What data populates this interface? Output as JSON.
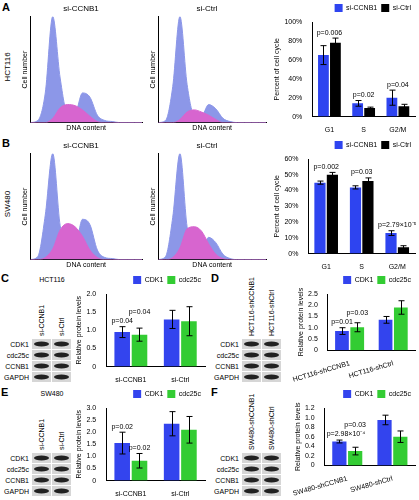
{
  "figure": {
    "panels": [
      "A",
      "B",
      "C",
      "D",
      "E",
      "F"
    ],
    "row_labels": [
      "HCT116",
      "SW480"
    ],
    "blots": [
      {
        "title": "HCT116",
        "lanes": [
          "si-CCNB1",
          "si-Ctrl"
        ],
        "rows": [
          "CDK1",
          "cdc25c",
          "CCNB1",
          "GAPDH"
        ]
      },
      {
        "lanes": [
          "HCT116-shCCNB1",
          "HCT116-shCtrl"
        ],
        "rows": [
          "CDK1",
          "cdc25c",
          "CCNB1",
          "GAPDH"
        ]
      },
      {
        "title": "SW480",
        "lanes": [
          "si-CCNB1",
          "si-Ctrl"
        ],
        "rows": [
          "CDK1",
          "cdc25c",
          "CCNB1",
          "GAPDH"
        ]
      },
      {
        "lanes": [
          "SW480-shCCNB1",
          "SW480-shCtrl"
        ],
        "rows": [
          "CDK1",
          "cdc25c",
          "CCNB1",
          "GAPDH"
        ]
      }
    ]
  },
  "chart_data": [
    {
      "type": "area",
      "title": "si-CCNB1",
      "x_label": "DNA content",
      "y_label": "Cell number",
      "x": [
        0,
        1,
        2,
        3,
        4,
        5,
        6,
        7,
        8,
        9,
        10,
        11,
        12,
        13,
        14,
        15
      ],
      "xlim": [
        0,
        15
      ],
      "ylim": [
        0,
        100
      ],
      "tick_labels": false,
      "grid": false,
      "series": [
        {
          "color": "#8c97e8",
          "values": [
            0,
            2,
            28,
            100,
            42,
            9,
            9,
            28,
            24,
            7,
            2,
            1,
            0,
            0,
            0,
            0
          ]
        },
        {
          "color": "#d765cf",
          "values": [
            0,
            0,
            0,
            4,
            14,
            17,
            16,
            12,
            6,
            1,
            0,
            0,
            0,
            0,
            0,
            0
          ]
        }
      ]
    },
    {
      "type": "area",
      "title": "si-Ctrl",
      "x_label": "DNA content",
      "y_label": "Cell number",
      "x": [
        0,
        1,
        2,
        3,
        4,
        5,
        6,
        7,
        8,
        9,
        10,
        11,
        12,
        13,
        14,
        15
      ],
      "xlim": [
        0,
        15
      ],
      "ylim": [
        0,
        100
      ],
      "tick_labels": false,
      "grid": false,
      "series": [
        {
          "color": "#8c97e8",
          "values": [
            0,
            2,
            34,
            100,
            36,
            7,
            6,
            17,
            13,
            4,
            1,
            0,
            0,
            0,
            0,
            0
          ]
        },
        {
          "color": "#d765cf",
          "values": [
            0,
            0,
            0,
            3,
            10,
            12,
            10,
            7,
            3,
            0,
            0,
            0,
            0,
            0,
            0,
            0
          ]
        }
      ]
    },
    {
      "type": "bar",
      "y_label": "Percent of cell cycle",
      "categories": [
        "G1",
        "S",
        "G2/M"
      ],
      "ylim": [
        0,
        100
      ],
      "yticks": [
        {
          "value": 0,
          "label": "0%"
        },
        {
          "value": 20,
          "label": "20%"
        },
        {
          "value": 40,
          "label": "40%"
        },
        {
          "value": 60,
          "label": "60%"
        },
        {
          "value": 80,
          "label": "80%"
        },
        {
          "value": 100,
          "label": "100%"
        }
      ],
      "grid": false,
      "legend": "top-right",
      "series": [
        {
          "name": "si-CCNB1",
          "color": "#2e44f0",
          "values": [
            65,
            14,
            20
          ],
          "errors": [
            10,
            3,
            8
          ]
        },
        {
          "name": "si-Ctrl",
          "color": "#000000",
          "values": [
            78,
            9,
            11
          ],
          "errors": [
            5,
            1,
            2
          ]
        }
      ],
      "annotations": [
        {
          "text": "p=0.006",
          "category": "G1"
        },
        {
          "text": "p=0.02",
          "category": "S"
        },
        {
          "text": "p=0.04",
          "category": "G2/M"
        }
      ]
    },
    {
      "type": "area",
      "title": "si-CCNB1",
      "x_label": "DNA content",
      "y_label": "Cell number",
      "x": [
        0,
        1,
        2,
        3,
        4,
        5,
        6,
        7,
        8,
        9,
        10,
        11,
        12,
        13,
        14,
        15
      ],
      "xlim": [
        0,
        15
      ],
      "ylim": [
        0,
        100
      ],
      "tick_labels": false,
      "grid": false,
      "series": [
        {
          "color": "#8c97e8",
          "values": [
            0,
            3,
            42,
            100,
            32,
            11,
            12,
            38,
            33,
            9,
            2,
            1,
            0,
            0,
            0,
            0
          ]
        },
        {
          "color": "#d765cf",
          "values": [
            0,
            0,
            2,
            10,
            28,
            34,
            31,
            22,
            9,
            2,
            0,
            0,
            0,
            0,
            0,
            0
          ]
        }
      ]
    },
    {
      "type": "area",
      "title": "si-Ctrl",
      "x_label": "DNA content",
      "y_label": "Cell number",
      "x": [
        0,
        1,
        2,
        3,
        4,
        5,
        6,
        7,
        8,
        9,
        10,
        11,
        12,
        13,
        14,
        15
      ],
      "xlim": [
        0,
        15
      ],
      "ylim": [
        0,
        100
      ],
      "tick_labels": false,
      "grid": false,
      "series": [
        {
          "color": "#8c97e8",
          "values": [
            0,
            3,
            40,
            100,
            31,
            10,
            8,
            21,
            16,
            5,
            1,
            0,
            0,
            0,
            0,
            0
          ]
        },
        {
          "color": "#d765cf",
          "values": [
            0,
            0,
            2,
            11,
            29,
            31,
            27,
            15,
            5,
            1,
            0,
            0,
            0,
            0,
            0,
            0
          ]
        }
      ]
    },
    {
      "type": "bar",
      "y_label": "Percent of cell cycle",
      "categories": [
        "G1",
        "S",
        "G2/M"
      ],
      "ylim": [
        0,
        60
      ],
      "yticks": [
        {
          "value": 0,
          "label": "0%"
        },
        {
          "value": 10,
          "label": "10%"
        },
        {
          "value": 20,
          "label": "20%"
        },
        {
          "value": 30,
          "label": "30%"
        },
        {
          "value": 40,
          "label": "40%"
        },
        {
          "value": 50,
          "label": "50%"
        },
        {
          "value": 60,
          "label": "60%"
        }
      ],
      "grid": false,
      "legend": "top-right",
      "series": [
        {
          "name": "si-CCNB1",
          "color": "#2e44f0",
          "values": [
            45,
            42,
            13
          ],
          "errors": [
            1,
            1,
            1.5
          ]
        },
        {
          "name": "si-Ctrl",
          "color": "#000000",
          "values": [
            50,
            46,
            4
          ],
          "errors": [
            1.5,
            2,
            1
          ]
        }
      ],
      "annotations": [
        {
          "text": "p=0.002",
          "category": "G1"
        },
        {
          "text": "p=0.03",
          "category": "S"
        },
        {
          "text": "p=2.79×10⁻⁵",
          "category": "G2/M"
        }
      ]
    },
    {
      "type": "bar",
      "y_label": "Relative protein levels",
      "categories": [
        "si-CCNB1",
        "si-Ctrl"
      ],
      "ylim": [
        0,
        2
      ],
      "yticks": [
        0,
        0.5,
        {
          "value": 1,
          "label": "1.0"
        },
        1.5,
        {
          "value": 2,
          "label": "2.0"
        }
      ],
      "grid": false,
      "legend": "top-right",
      "series": [
        {
          "name": "CDK1",
          "color": "#3344ee",
          "values": [
            0.95,
            1.3
          ],
          "errors": [
            0.15,
            0.25
          ]
        },
        {
          "name": "cdc25c",
          "color": "#33cc33",
          "values": [
            0.88,
            1.25
          ],
          "errors": [
            0.18,
            0.4
          ]
        }
      ],
      "annotations": [
        {
          "text": "p=0.04",
          "category": "si-CCNB1",
          "series": "CDK1"
        },
        {
          "text": "p=0.04",
          "category": "si-CCNB1",
          "series": "cdc25c"
        }
      ]
    },
    {
      "type": "bar",
      "y_label": "Relative protein levels",
      "categories": [
        "HCT116-shCCNB1",
        "HCT116-shCtrl"
      ],
      "ylim": [
        0,
        2.5
      ],
      "yticks": [
        0,
        0.5,
        {
          "value": 1,
          "label": "1.0"
        },
        1.5,
        {
          "value": 2,
          "label": "2.0"
        },
        2.5
      ],
      "grid": false,
      "legend": "top-right",
      "series": [
        {
          "name": "CDK1",
          "color": "#3344ee",
          "values": [
            0.85,
            1.35
          ],
          "errors": [
            0.15,
            0.15
          ]
        },
        {
          "name": "cdc25c",
          "color": "#33cc33",
          "values": [
            1.02,
            1.9
          ],
          "errors": [
            0.2,
            0.3
          ]
        }
      ],
      "annotations": [
        {
          "text": "p=0.01",
          "category": "HCT116-shCCNB1",
          "series": "CDK1"
        },
        {
          "text": "p=0.03",
          "category": "HCT116-shCCNB1",
          "series": "cdc25c"
        }
      ]
    },
    {
      "type": "bar",
      "y_label": "Relative protein levels",
      "categories": [
        "si-CCNB1",
        "si-Ctrl"
      ],
      "ylim": [
        0,
        3
      ],
      "yticks": [
        0,
        0.5,
        {
          "value": 1,
          "label": "1.0"
        },
        1.5,
        {
          "value": 2,
          "label": "2.0"
        },
        2.5,
        {
          "value": 3,
          "label": "3.0"
        }
      ],
      "grid": false,
      "legend": "top-right",
      "series": [
        {
          "name": "CDK1",
          "color": "#3344ee",
          "values": [
            1.55,
            2.35
          ],
          "errors": [
            0.45,
            0.5
          ]
        },
        {
          "name": "cdc25c",
          "color": "#33cc33",
          "values": [
            0.82,
            2.1
          ],
          "errors": [
            0.3,
            0.55
          ]
        }
      ],
      "annotations": [
        {
          "text": "p=0.02",
          "category": "si-CCNB1",
          "series": "CDK1"
        },
        {
          "text": "p=0.02",
          "category": "si-CCNB1",
          "series": "cdc25c"
        }
      ]
    },
    {
      "type": "bar",
      "y_label": "Relative protein levels",
      "categories": [
        "SW480-shCCNB1",
        "SW480-shCtrl"
      ],
      "ylim": [
        0,
        1.2
      ],
      "yticks": [
        0,
        0.2,
        0.4,
        0.6,
        0.8,
        {
          "value": 1,
          "label": "1.0"
        },
        1.2
      ],
      "grid": false,
      "legend": "top-right",
      "series": [
        {
          "name": "CDK1",
          "color": "#3344ee",
          "values": [
            0.5,
            0.95
          ],
          "errors": [
            0.03,
            0.1
          ]
        },
        {
          "name": "cdc25c",
          "color": "#33cc33",
          "values": [
            0.3,
            0.6
          ],
          "errors": [
            0.08,
            0.12
          ]
        }
      ],
      "annotations": [
        {
          "text": "p=2.98×10⁻⁴",
          "category": "SW480-shCCNB1",
          "series": "CDK1"
        },
        {
          "text": "p=0.03",
          "category": "SW480-shCCNB1",
          "series": "cdc25c"
        }
      ]
    }
  ]
}
